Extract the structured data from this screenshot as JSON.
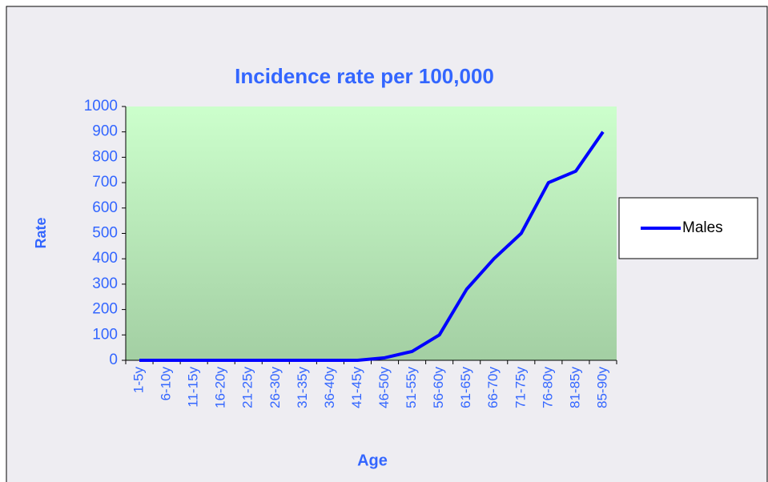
{
  "chart_data": {
    "type": "line",
    "title": "Incidence rate per 100,000",
    "x_label": "Age",
    "y_label": "Rate",
    "categories": [
      "1-5y",
      "6-10y",
      "11-15y",
      "16-20y",
      "21-25y",
      "26-30y",
      "31-35y",
      "36-40y",
      "41-45y",
      "46-50y",
      "51-55y",
      "56-60y",
      "61-65y",
      "66-70y",
      "71-75y",
      "76-80y",
      "81-85y",
      "85-90y"
    ],
    "series": [
      {
        "name": "Males",
        "color": "#0000ff",
        "values": [
          0,
          0,
          0,
          0,
          0,
          0,
          0,
          0,
          0,
          10,
          35,
          100,
          280,
          400,
          500,
          700,
          745,
          900
        ]
      }
    ],
    "ylim": [
      0,
      1000
    ],
    "yticks": [
      0,
      100,
      200,
      300,
      400,
      500,
      600,
      700,
      800,
      900,
      1000
    ],
    "grid": false,
    "legend": "right"
  }
}
